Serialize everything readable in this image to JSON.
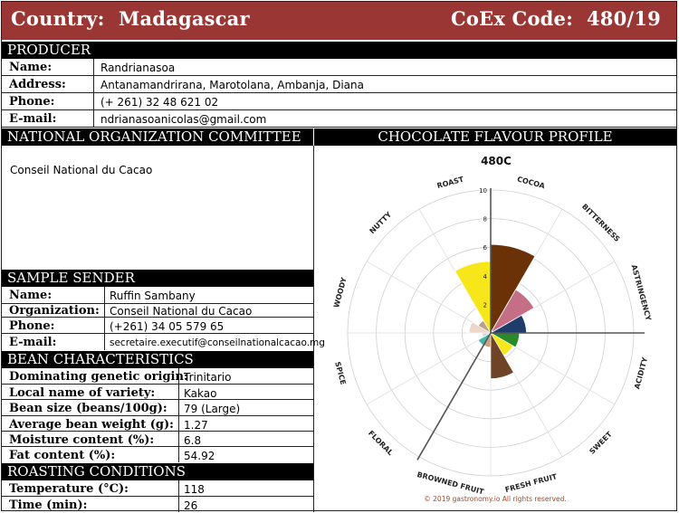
{
  "header": {
    "country_label": "Country:",
    "country_value": "Madagascar",
    "coex_label": "CoEx Code:",
    "coex_value": "480/19"
  },
  "producer": {
    "title": "PRODUCER",
    "rows": [
      {
        "label": "Name:",
        "value": "Randrianasoa"
      },
      {
        "label": "Address:",
        "value": "Antanamandrirana, Marotolana, Ambanja, Diana"
      },
      {
        "label": "Phone:",
        "value": "(+ 261) 32 48 621 02"
      },
      {
        "label": "E-mail:",
        "value": "ndrianasoanicolas@gmail.com"
      }
    ]
  },
  "national": {
    "title": "NATIONAL ORGANIZATION COMMITTEE",
    "value": "Conseil National du Cacao"
  },
  "flavour_title": "CHOCOLATE FLAVOUR PROFILE",
  "sender": {
    "title": "SAMPLE SENDER",
    "rows": [
      {
        "label": "Name:",
        "value": "Ruffin Sambany"
      },
      {
        "label": "Organization:",
        "value": "Conseil National du Cacao"
      },
      {
        "label": "Phone:",
        "value": "(+261) 34 05 579 65"
      },
      {
        "label": "E-mail:",
        "value": "secretaire.executif@conseilnationalcacao.mg"
      }
    ]
  },
  "bean": {
    "title": "BEAN CHARACTERISTICS",
    "rows": [
      {
        "label": "Dominating genetic origin:",
        "value": "Trinitario"
      },
      {
        "label": "Local name of variety:",
        "value": "Kakao"
      },
      {
        "label": "Bean size (beans/100g):",
        "value": "79 (Large)"
      },
      {
        "label": "Average bean weight (g):",
        "value": "1.27"
      },
      {
        "label": "Moisture content (%):",
        "value": "6.8"
      },
      {
        "label": "Fat content (%):",
        "value": "54.92"
      }
    ]
  },
  "roasting": {
    "title": "ROASTING CONDITIONS",
    "rows": [
      {
        "label": "Temperature (°C):",
        "value": "118"
      },
      {
        "label": "Time (min):",
        "value": "26"
      }
    ]
  },
  "chart_data": {
    "type": "polar-bar",
    "title": "480C",
    "rlim": [
      0,
      10
    ],
    "ticks": [
      "2",
      "4",
      "6",
      "8",
      "10"
    ],
    "categories": [
      {
        "name": "COCOA",
        "value": 6.2,
        "color": "#6b3208"
      },
      {
        "name": "BITTERNESS",
        "value": 3.5,
        "color": "#c56f86"
      },
      {
        "name": "ASTRINGENCY",
        "value": 2.5,
        "color": "#1f3d6b"
      },
      {
        "name": "ACIDITY",
        "value": 0.0,
        "color": "#999999"
      },
      {
        "name": "SWEET",
        "value": 0.0,
        "color": "#999999"
      },
      {
        "name": "FRESH FRUIT",
        "value": 0.0,
        "color": "#999999"
      },
      {
        "name": "BROWNED FRUIT",
        "value": 0.0,
        "color": "#999999"
      },
      {
        "name": "FLORAL",
        "value": 0.0,
        "color": "#999999"
      },
      {
        "name": "SPICE",
        "value": 0.0,
        "color": "#999999"
      },
      {
        "name": "WOODY",
        "value": 0.0,
        "color": "#999999"
      },
      {
        "name": "NUTTY",
        "value": 0.0,
        "color": "#999999"
      },
      {
        "name": "ROAST",
        "value": 5.0,
        "color": "#f7e61a"
      }
    ],
    "inner_wedges": [
      {
        "from": 90,
        "to": 120,
        "value": 2.0,
        "color": "#2a8a2a"
      },
      {
        "from": 120,
        "to": 150,
        "value": 1.8,
        "color": "#f7e61a"
      },
      {
        "from": 150,
        "to": 180,
        "value": 3.2,
        "color": "#6e4327"
      },
      {
        "from": 180,
        "to": 210,
        "value": 1.0,
        "color": "#cfa07a"
      },
      {
        "from": 210,
        "to": 240,
        "value": 1.0,
        "color": "#3fb8a8"
      },
      {
        "from": 240,
        "to": 270,
        "value": 0.6,
        "color": "#d9d9d9"
      },
      {
        "from": 270,
        "to": 300,
        "value": 1.5,
        "color": "#edd7c8"
      },
      {
        "from": 300,
        "to": 330,
        "value": 1.0,
        "color": "#b6a08a"
      }
    ],
    "copyright": "© 2019 gastronomy.io All rights reserved."
  }
}
